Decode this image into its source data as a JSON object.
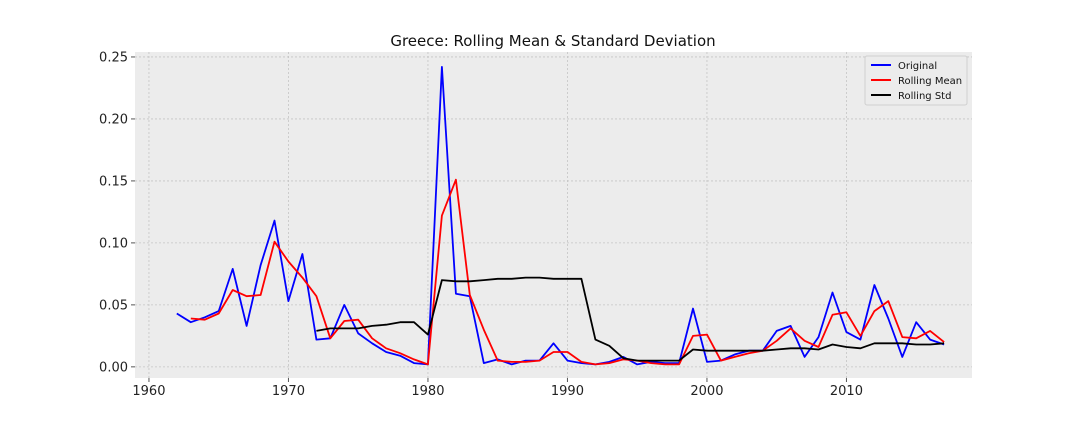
{
  "chart_data": {
    "type": "line",
    "title": "Greece: Rolling Mean & Standard Deviation",
    "xlabel": "",
    "ylabel": "",
    "xlim": [
      1959,
      2019
    ],
    "ylim": [
      -0.009,
      0.254
    ],
    "xticks": [
      1960,
      1970,
      1980,
      1990,
      2000,
      2010
    ],
    "yticks": [
      0.0,
      0.05,
      0.1,
      0.15,
      0.2,
      0.25
    ],
    "ytick_labels": [
      "0.00",
      "0.05",
      "0.10",
      "0.15",
      "0.20",
      "0.25"
    ],
    "grid": true,
    "legend_position": "top-right",
    "colors": {
      "plot_bg": "#ececec",
      "grid": "#c4c4c4"
    },
    "series": [
      {
        "name": "Original",
        "color": "#0000ff",
        "x": [
          1962,
          1963,
          1964,
          1965,
          1966,
          1967,
          1968,
          1969,
          1970,
          1971,
          1972,
          1973,
          1974,
          1975,
          1976,
          1977,
          1978,
          1979,
          1980,
          1981,
          1982,
          1983,
          1984,
          1985,
          1986,
          1987,
          1988,
          1989,
          1990,
          1991,
          1992,
          1993,
          1994,
          1995,
          1996,
          1997,
          1998,
          1999,
          2000,
          2001,
          2002,
          2003,
          2004,
          2005,
          2006,
          2007,
          2008,
          2009,
          2010,
          2011,
          2012,
          2013,
          2014,
          2015,
          2016,
          2017
        ],
        "y": [
          0.043,
          0.036,
          0.04,
          0.045,
          0.079,
          0.033,
          0.082,
          0.118,
          0.053,
          0.091,
          0.022,
          0.023,
          0.05,
          0.027,
          0.019,
          0.012,
          0.009,
          0.003,
          0.002,
          0.242,
          0.059,
          0.057,
          0.003,
          0.006,
          0.002,
          0.005,
          0.005,
          0.019,
          0.005,
          0.003,
          0.002,
          0.004,
          0.008,
          0.002,
          0.004,
          0.003,
          0.003,
          0.047,
          0.004,
          0.005,
          0.01,
          0.013,
          0.013,
          0.029,
          0.033,
          0.008,
          0.024,
          0.06,
          0.028,
          0.022,
          0.066,
          0.039,
          0.008,
          0.036,
          0.022,
          0.018
        ]
      },
      {
        "name": "Rolling Mean",
        "color": "#ff0000",
        "x": [
          1963,
          1964,
          1965,
          1966,
          1967,
          1968,
          1969,
          1970,
          1971,
          1972,
          1973,
          1974,
          1975,
          1976,
          1977,
          1978,
          1979,
          1980,
          1981,
          1982,
          1983,
          1984,
          1985,
          1986,
          1987,
          1988,
          1989,
          1990,
          1991,
          1992,
          1993,
          1994,
          1995,
          1996,
          1997,
          1998,
          1999,
          2000,
          2001,
          2002,
          2003,
          2004,
          2005,
          2006,
          2007,
          2008,
          2009,
          2010,
          2011,
          2012,
          2013,
          2014,
          2015,
          2016,
          2017
        ],
        "y": [
          0.039,
          0.038,
          0.043,
          0.062,
          0.057,
          0.058,
          0.101,
          0.085,
          0.072,
          0.057,
          0.023,
          0.037,
          0.038,
          0.023,
          0.015,
          0.011,
          0.006,
          0.002,
          0.122,
          0.151,
          0.058,
          0.03,
          0.005,
          0.004,
          0.004,
          0.005,
          0.012,
          0.012,
          0.004,
          0.002,
          0.003,
          0.006,
          0.005,
          0.003,
          0.002,
          0.002,
          0.025,
          0.026,
          0.005,
          0.008,
          0.011,
          0.013,
          0.021,
          0.031,
          0.021,
          0.016,
          0.042,
          0.044,
          0.025,
          0.045,
          0.053,
          0.024,
          0.023,
          0.029,
          0.02
        ]
      },
      {
        "name": "Rolling Std",
        "color": "#000000",
        "x": [
          1972,
          1973,
          1974,
          1975,
          1976,
          1977,
          1978,
          1979,
          1980,
          1981,
          1982,
          1983,
          1984,
          1985,
          1986,
          1987,
          1988,
          1989,
          1990,
          1991,
          1992,
          1993,
          1994,
          1995,
          1996,
          1997,
          1998,
          1999,
          2000,
          2001,
          2002,
          2003,
          2004,
          2005,
          2006,
          2007,
          2008,
          2009,
          2010,
          2011,
          2012,
          2013,
          2014,
          2015,
          2016,
          2017
        ],
        "y": [
          0.029,
          0.031,
          0.031,
          0.031,
          0.033,
          0.034,
          0.036,
          0.036,
          0.026,
          0.07,
          0.069,
          0.069,
          0.07,
          0.071,
          0.071,
          0.072,
          0.072,
          0.071,
          0.071,
          0.071,
          0.022,
          0.017,
          0.007,
          0.005,
          0.005,
          0.005,
          0.005,
          0.014,
          0.013,
          0.013,
          0.013,
          0.013,
          0.013,
          0.014,
          0.015,
          0.015,
          0.014,
          0.018,
          0.016,
          0.015,
          0.019,
          0.019,
          0.019,
          0.018,
          0.018,
          0.019
        ]
      }
    ]
  }
}
